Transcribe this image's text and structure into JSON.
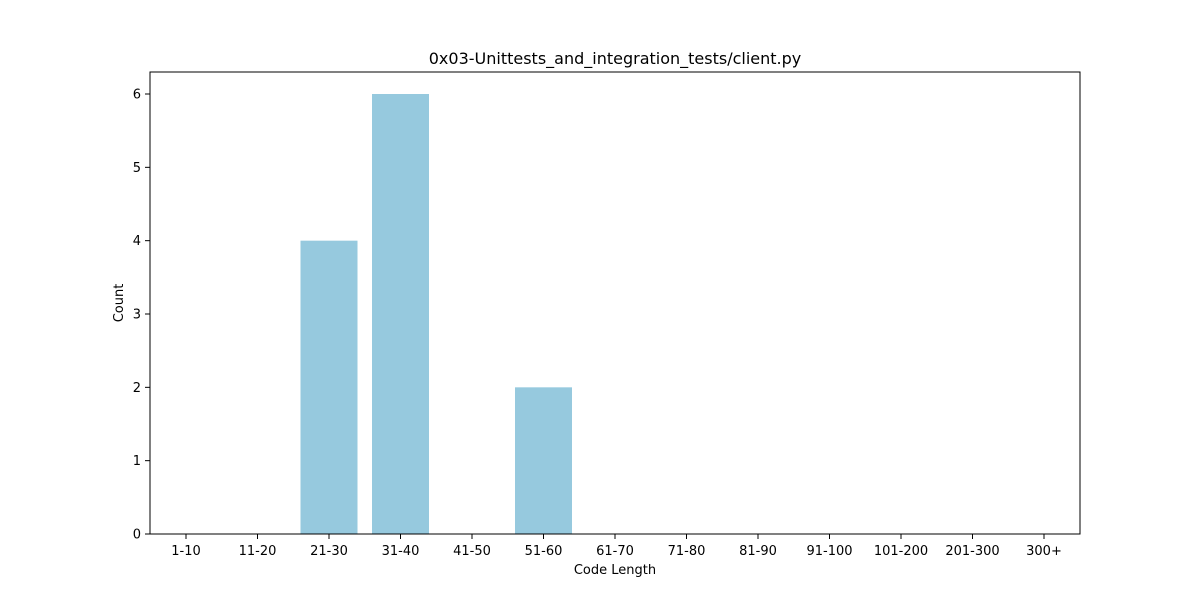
{
  "chart_data": {
    "type": "bar",
    "title": "0x03-Unittests_and_integration_tests/client.py",
    "xlabel": "Code Length",
    "ylabel": "Count",
    "categories": [
      "1-10",
      "11-20",
      "21-30",
      "31-40",
      "41-50",
      "51-60",
      "61-70",
      "71-80",
      "81-90",
      "91-100",
      "101-200",
      "201-300",
      "300+"
    ],
    "values": [
      0,
      0,
      4,
      6,
      0,
      2,
      0,
      0,
      0,
      0,
      0,
      0,
      0
    ],
    "ylim": [
      0,
      6.3
    ],
    "yticks": [
      "0",
      "1",
      "2",
      "3",
      "4",
      "5",
      "6"
    ],
    "grid": false,
    "legend": "none",
    "bar_color": "#96c9de"
  }
}
